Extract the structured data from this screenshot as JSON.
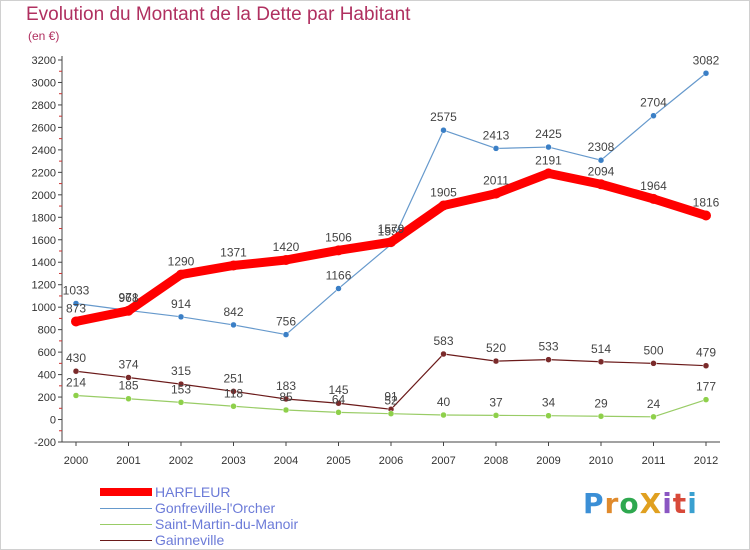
{
  "title": "Evolution du Montant de la Dette par Habitant",
  "subtitle": "(en €)",
  "logo": {
    "text": "ProXiti",
    "colors": [
      "#3b8fd6",
      "#e08a2c",
      "#2ea84f",
      "#e0a020",
      "#8a56c2",
      "#d84a3a",
      "#3aa0d0"
    ]
  },
  "legend": [
    {
      "name": "HARFLEUR",
      "color": "#ff0000",
      "width": 8
    },
    {
      "name": "Gonfreville-l'Orcher",
      "color": "#6699cc",
      "width": 1
    },
    {
      "name": "Saint-Martin-du-Manoir",
      "color": "#99cc66",
      "width": 1
    },
    {
      "name": "Gainneville",
      "color": "#6b1a1a",
      "width": 1
    }
  ],
  "chart_data": {
    "type": "line",
    "x": [
      "2000",
      "2001",
      "2002",
      "2003",
      "2004",
      "2005",
      "2006",
      "2007",
      "2008",
      "2009",
      "2010",
      "2011",
      "2012"
    ],
    "ylim": [
      -200,
      3200
    ],
    "yticks": [
      "-200",
      "0",
      "200",
      "400",
      "600",
      "800",
      "1000",
      "1200",
      "1400",
      "1600",
      "1800",
      "2000",
      "2200",
      "2400",
      "2600",
      "2800",
      "3000",
      "3200"
    ],
    "grid": false,
    "series": [
      {
        "name": "Gainneville",
        "color": "#6b1a1a",
        "marker": "#7a2a2a",
        "values": [
          430,
          374,
          315,
          251,
          183,
          145,
          91,
          583,
          520,
          533,
          514,
          500,
          479
        ],
        "labels": [
          "430",
          "374",
          "315",
          "251",
          "183",
          "145",
          "91",
          "583",
          "520",
          "533",
          "514",
          "500",
          "479"
        ]
      },
      {
        "name": "Saint-Martin-du-Manoir",
        "color": "#99cc66",
        "marker": "#8ed04a",
        "values": [
          214,
          185,
          153,
          118,
          85,
          64,
          52,
          40,
          37,
          34,
          29,
          24,
          177
        ],
        "labels": [
          "214",
          "185",
          "153",
          "118",
          "85",
          "64",
          "52",
          "40",
          "37",
          "34",
          "29",
          "24",
          "177"
        ]
      },
      {
        "name": "Gonfreville-l'Orcher",
        "color": "#6699cc",
        "marker": "#3a7fc6",
        "values": [
          1033,
          971,
          914,
          842,
          756,
          1166,
          1558,
          2575,
          2413,
          2425,
          2308,
          2704,
          3082
        ],
        "labels": [
          "1033",
          "971",
          "914",
          "842",
          "756",
          "1166",
          "1558",
          "2575",
          "2413",
          "2425",
          "2308",
          "2704",
          "3082"
        ]
      },
      {
        "name": "HARFLEUR",
        "color": "#ff0000",
        "marker": "#ff0000",
        "values": [
          873,
          968,
          1290,
          1371,
          1420,
          1506,
          1579,
          1905,
          2011,
          2191,
          2094,
          1964,
          1816
        ],
        "labels": [
          "873",
          "968",
          "1290",
          "1371",
          "1420",
          "1506",
          "1579",
          "1905",
          "2011",
          "2191",
          "2094",
          "1964",
          "1816"
        ]
      }
    ]
  }
}
